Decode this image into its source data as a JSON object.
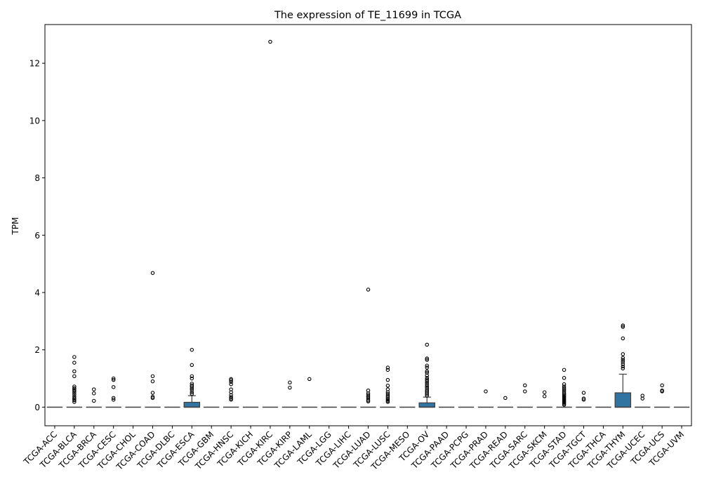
{
  "chart_data": {
    "type": "boxplot",
    "title": "The expression of TE_11699 in TCGA",
    "xlabel": "",
    "ylabel": "TPM",
    "ylim": [
      -0.65,
      13.35
    ],
    "yticks": [
      0,
      2,
      4,
      6,
      8,
      10,
      12
    ],
    "grid": false,
    "legend": "none",
    "box_color": "#3274a1",
    "categories": [
      "TCGA-ACC",
      "TCGA-BLCA",
      "TCGA-BRCA",
      "TCGA-CESC",
      "TCGA-CHOL",
      "TCGA-COAD",
      "TCGA-DLBC",
      "TCGA-ESCA",
      "TCGA-GBM",
      "TCGA-HNSC",
      "TCGA-KICH",
      "TCGA-KIRC",
      "TCGA-KIRP",
      "TCGA-LAML",
      "TCGA-LGG",
      "TCGA-LIHC",
      "TCGA-LUAD",
      "TCGA-LUSC",
      "TCGA-MESO",
      "TCGA-OV",
      "TCGA-PAAD",
      "TCGA-PCPG",
      "TCGA-PRAD",
      "TCGA-READ",
      "TCGA-SARC",
      "TCGA-SKCM",
      "TCGA-STAD",
      "TCGA-TGCT",
      "TCGA-THCA",
      "TCGA-THYM",
      "TCGA-UCEC",
      "TCGA-UCS",
      "TCGA-UVM"
    ],
    "boxes": [
      {
        "q1": 0,
        "median": 0,
        "q3": 0,
        "whisker_low": 0,
        "whisker_high": 0,
        "outliers": []
      },
      {
        "q1": 0,
        "median": 0,
        "q3": 0,
        "whisker_low": 0,
        "whisker_high": 0,
        "outliers": [
          1.75,
          1.55,
          1.25,
          1.08,
          0.72,
          0.66,
          0.62,
          0.58,
          0.52,
          0.45,
          0.38,
          0.32,
          0.28,
          0.24,
          0.18
        ]
      },
      {
        "q1": 0,
        "median": 0,
        "q3": 0,
        "whisker_low": 0,
        "whisker_high": 0,
        "outliers": [
          0.62,
          0.48,
          0.22
        ]
      },
      {
        "q1": 0,
        "median": 0,
        "q3": 0,
        "whisker_low": 0,
        "whisker_high": 0,
        "outliers": [
          1.0,
          0.95,
          0.7,
          0.32,
          0.26
        ]
      },
      {
        "q1": 0,
        "median": 0,
        "q3": 0,
        "whisker_low": 0,
        "whisker_high": 0,
        "outliers": []
      },
      {
        "q1": 0,
        "median": 0,
        "q3": 0,
        "whisker_low": 0,
        "whisker_high": 0,
        "outliers": [
          4.68,
          1.08,
          0.9,
          0.5,
          0.36,
          0.32
        ]
      },
      {
        "q1": 0,
        "median": 0,
        "q3": 0,
        "whisker_low": 0,
        "whisker_high": 0,
        "outliers": []
      },
      {
        "q1": 0,
        "median": 0,
        "q3": 0.17,
        "whisker_low": 0,
        "whisker_high": 0.4,
        "outliers": [
          2.0,
          1.47,
          1.08,
          1.0,
          0.82,
          0.76,
          0.72,
          0.66,
          0.6,
          0.52,
          0.46
        ]
      },
      {
        "q1": 0,
        "median": 0,
        "q3": 0,
        "whisker_low": 0,
        "whisker_high": 0,
        "outliers": []
      },
      {
        "q1": 0,
        "median": 0,
        "q3": 0,
        "whisker_low": 0,
        "whisker_high": 0,
        "outliers": [
          0.98,
          0.94,
          0.88,
          0.8,
          0.62,
          0.52,
          0.42,
          0.35,
          0.3,
          0.26
        ]
      },
      {
        "q1": 0,
        "median": 0,
        "q3": 0,
        "whisker_low": 0,
        "whisker_high": 0,
        "outliers": []
      },
      {
        "q1": 0,
        "median": 0,
        "q3": 0,
        "whisker_low": 0,
        "whisker_high": 0,
        "outliers": [
          12.75
        ]
      },
      {
        "q1": 0,
        "median": 0,
        "q3": 0,
        "whisker_low": 0,
        "whisker_high": 0,
        "outliers": [
          0.86,
          0.68
        ]
      },
      {
        "q1": 0,
        "median": 0,
        "q3": 0,
        "whisker_low": 0,
        "whisker_high": 0,
        "outliers": [
          0.98
        ]
      },
      {
        "q1": 0,
        "median": 0,
        "q3": 0,
        "whisker_low": 0,
        "whisker_high": 0,
        "outliers": []
      },
      {
        "q1": 0,
        "median": 0,
        "q3": 0,
        "whisker_low": 0,
        "whisker_high": 0,
        "outliers": []
      },
      {
        "q1": 0,
        "median": 0,
        "q3": 0,
        "whisker_low": 0,
        "whisker_high": 0,
        "outliers": [
          4.1,
          0.58,
          0.48,
          0.42,
          0.36,
          0.3,
          0.24,
          0.2
        ]
      },
      {
        "q1": 0,
        "median": 0,
        "q3": 0,
        "whisker_low": 0,
        "whisker_high": 0,
        "outliers": [
          1.38,
          1.3,
          0.95,
          0.75,
          0.62,
          0.52,
          0.46,
          0.4,
          0.35,
          0.3,
          0.26,
          0.22,
          0.18
        ]
      },
      {
        "q1": 0,
        "median": 0,
        "q3": 0,
        "whisker_low": 0,
        "whisker_high": 0,
        "outliers": []
      },
      {
        "q1": 0,
        "median": 0,
        "q3": 0.15,
        "whisker_low": 0,
        "whisker_high": 0.35,
        "outliers": [
          2.18,
          1.7,
          1.65,
          1.45,
          1.38,
          1.25,
          1.2,
          1.1,
          1.02,
          0.96,
          0.9,
          0.84,
          0.78,
          0.72,
          0.66,
          0.6,
          0.55,
          0.5,
          0.45,
          0.4
        ]
      },
      {
        "q1": 0,
        "median": 0,
        "q3": 0,
        "whisker_low": 0,
        "whisker_high": 0,
        "outliers": []
      },
      {
        "q1": 0,
        "median": 0,
        "q3": 0,
        "whisker_low": 0,
        "whisker_high": 0,
        "outliers": []
      },
      {
        "q1": 0,
        "median": 0,
        "q3": 0,
        "whisker_low": 0,
        "whisker_high": 0,
        "outliers": [
          0.55
        ]
      },
      {
        "q1": 0,
        "median": 0,
        "q3": 0,
        "whisker_low": 0,
        "whisker_high": 0,
        "outliers": [
          0.32
        ]
      },
      {
        "q1": 0,
        "median": 0,
        "q3": 0,
        "whisker_low": 0,
        "whisker_high": 0,
        "outliers": [
          0.76,
          0.55
        ]
      },
      {
        "q1": 0,
        "median": 0,
        "q3": 0,
        "whisker_low": 0,
        "whisker_high": 0,
        "outliers": [
          0.52,
          0.38
        ]
      },
      {
        "q1": 0,
        "median": 0,
        "q3": 0,
        "whisker_low": 0,
        "whisker_high": 0,
        "outliers": [
          1.3,
          1.02,
          0.8,
          0.72,
          0.66,
          0.6,
          0.54,
          0.48,
          0.44,
          0.4,
          0.36,
          0.32,
          0.28,
          0.24,
          0.2,
          0.16,
          0.12,
          0.08
        ]
      },
      {
        "q1": 0,
        "median": 0,
        "q3": 0,
        "whisker_low": 0,
        "whisker_high": 0,
        "outliers": [
          0.5,
          0.3,
          0.26
        ]
      },
      {
        "q1": 0,
        "median": 0,
        "q3": 0,
        "whisker_low": 0,
        "whisker_high": 0,
        "outliers": []
      },
      {
        "q1": 0,
        "median": 0,
        "q3": 0.5,
        "whisker_low": 0,
        "whisker_high": 1.15,
        "outliers": [
          2.85,
          2.8,
          2.4,
          1.85,
          1.72,
          1.65,
          1.58,
          1.5,
          1.42,
          1.35
        ]
      },
      {
        "q1": 0,
        "median": 0,
        "q3": 0,
        "whisker_low": 0,
        "whisker_high": 0,
        "outliers": [
          0.4,
          0.3
        ]
      },
      {
        "q1": 0,
        "median": 0,
        "q3": 0,
        "whisker_low": 0,
        "whisker_high": 0,
        "outliers": [
          0.76,
          0.58,
          0.55
        ]
      },
      {
        "q1": 0,
        "median": 0,
        "q3": 0,
        "whisker_low": 0,
        "whisker_high": 0,
        "outliers": []
      }
    ]
  }
}
